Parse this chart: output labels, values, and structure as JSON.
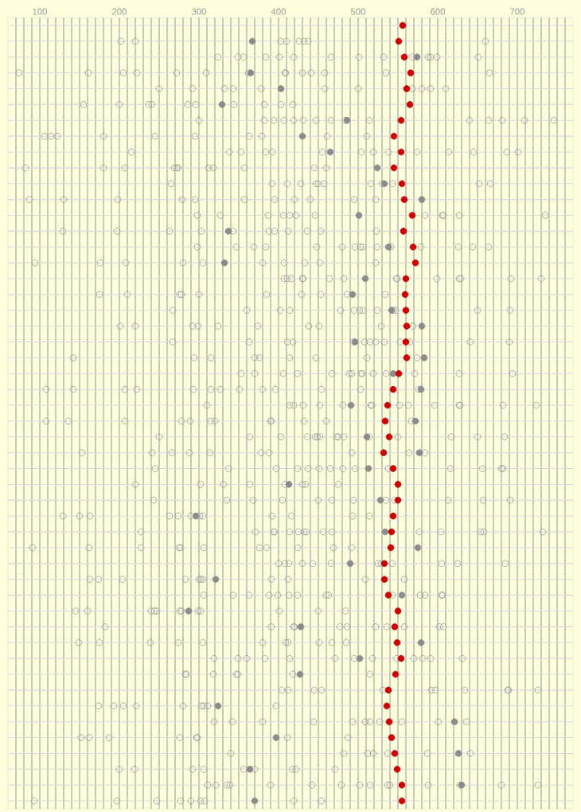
{
  "chart_data": {
    "type": "scatter",
    "orientation": "horizontal",
    "marker": "circle",
    "grid": true,
    "xlim": [
      60,
      770
    ],
    "xticks": [
      {
        "value": 70,
        "label": null
      },
      {
        "value": 80,
        "label": null
      },
      {
        "value": 90,
        "label": null
      },
      100,
      {
        "value": 110,
        "label": null
      },
      {
        "value": 120,
        "label": null
      },
      {
        "value": 130,
        "label": null
      },
      {
        "value": 140,
        "label": null
      },
      {
        "value": 150,
        "label": null
      },
      {
        "value": 160,
        "label": null
      },
      {
        "value": 170,
        "label": null
      },
      {
        "value": 180,
        "label": null
      },
      {
        "value": 190,
        "label": null
      },
      200,
      {
        "value": 210,
        "label": null
      },
      {
        "value": 220,
        "label": null
      },
      {
        "value": 230,
        "label": null
      },
      {
        "value": 240,
        "label": null
      },
      {
        "value": 250,
        "label": null
      },
      {
        "value": 260,
        "label": null
      },
      {
        "value": 270,
        "label": null
      },
      {
        "value": 280,
        "label": null
      },
      {
        "value": 290,
        "label": null
      },
      300,
      {
        "value": 310,
        "label": null
      },
      {
        "value": 320,
        "label": null
      },
      {
        "value": 330,
        "label": null
      },
      {
        "value": 340,
        "label": null
      },
      {
        "value": 350,
        "label": null
      },
      {
        "value": 360,
        "label": null
      },
      {
        "value": 370,
        "label": null
      },
      {
        "value": 380,
        "label": null
      },
      {
        "value": 390,
        "label": null
      },
      400,
      {
        "value": 410,
        "label": null
      },
      {
        "value": 420,
        "label": null
      },
      {
        "value": 430,
        "label": null
      },
      {
        "value": 440,
        "label": null
      },
      {
        "value": 450,
        "label": null
      },
      {
        "value": 460,
        "label": null
      },
      {
        "value": 470,
        "label": null
      },
      {
        "value": 480,
        "label": null
      },
      {
        "value": 490,
        "label": null
      },
      500,
      {
        "value": 510,
        "label": null
      },
      {
        "value": 520,
        "label": null
      },
      {
        "value": 530,
        "label": null
      },
      {
        "value": 540,
        "label": null
      },
      {
        "value": 550,
        "label": null
      },
      {
        "value": 560,
        "label": null
      },
      {
        "value": 570,
        "label": null
      },
      {
        "value": 580,
        "label": null
      },
      {
        "value": 590,
        "label": null
      },
      600,
      {
        "value": 610,
        "label": null
      },
      {
        "value": 620,
        "label": null
      },
      {
        "value": 630,
        "label": null
      },
      {
        "value": 640,
        "label": null
      },
      {
        "value": 650,
        "label": null
      },
      {
        "value": 660,
        "label": null
      },
      {
        "value": 670,
        "label": null
      },
      {
        "value": 680,
        "label": null
      },
      {
        "value": 690,
        "label": null
      },
      700,
      {
        "value": 710,
        "label": null
      },
      {
        "value": 720,
        "label": null
      },
      {
        "value": 730,
        "label": null
      },
      {
        "value": 740,
        "label": null
      },
      {
        "value": 750,
        "label": null
      },
      {
        "value": 760,
        "label": null
      }
    ],
    "categories": [
      null,
      null,
      null,
      null,
      null,
      null,
      null,
      null,
      null,
      null,
      null,
      null,
      null,
      null,
      null,
      null,
      null,
      null,
      null,
      null,
      null,
      null,
      null,
      null,
      null,
      null,
      null,
      null,
      null,
      null,
      null,
      null,
      null,
      null,
      null,
      null,
      null,
      null,
      null,
      null,
      null,
      null,
      null,
      null,
      null,
      null,
      null,
      null,
      null,
      null
    ],
    "series": [
      {
        "color": "#999999",
        "values": [
          null,
          202,
          324,
          74,
          250,
          155,
          300,
          106,
          215,
          82,
          265,
          87,
          298,
          129,
          298,
          94,
          407,
          175,
          267,
          201,
          267,
          142,
          353,
          108,
          310,
          108,
          250,
          153,
          245,
          220,
          243,
          129,
          227,
          91,
          400,
          163,
          306,
          145,
          182,
          149,
          319,
          283,
          404,
          174,
          319,
          152,
          340,
          200,
          311,
          93
        ]
      },
      {
        "color": "#999999",
        "values": [
          null,
          220,
          349,
          161,
          292,
          200,
          382,
          114,
          338,
          180,
          392,
          130,
          327,
          197,
          347,
          176,
          411,
          210,
          360,
          220,
          363,
          294,
          370,
          142,
          414,
          136,
          364,
          241,
          337,
          302,
          335,
          150,
          371,
          162,
          408,
          174,
          343,
          160,
          391,
          175,
          349,
          284,
          412,
          193,
          342,
          162,
          482,
          219,
          321,
          197
        ]
      },
      {
        "color": "#999999",
        "values": [
          null,
          403,
          356,
          205,
          332,
          237,
          394,
          122,
          353,
          207,
          411,
          198,
          387,
          263,
          369,
          208,
          416,
          276,
          402,
          292,
          411,
          315,
          406,
          207,
          419,
          207,
          403,
          266,
          397,
          331,
          368,
          163,
          394,
          227,
          413,
          204,
          363,
          240,
          419,
          239,
          360,
          318,
          445,
          205,
          380,
          187,
          512,
          292,
          335,
          247
        ]
      },
      {
        "color": "#999999",
        "values": [
          null,
          410,
          384,
          222,
          343,
          241,
          407,
          180,
          384,
          269,
          428,
          279,
          406,
          303,
          384,
          280,
          430,
          278,
          414,
          299,
          418,
          370,
          424,
          222,
          431,
          278,
          436,
          288,
          424,
          364,
          405,
          263,
          395,
          275,
          430,
          283,
          388,
          244,
          420,
          274,
          383,
          347,
          454,
          221,
          444,
          276,
          519,
          306,
          339,
          277
        ]
      },
      {
        "color": "#999999",
        "values": [
          null,
          426,
          401,
          272,
          378,
          286,
          419,
          245,
          392,
          272,
          447,
          295,
          414,
          343,
          448,
          305,
          431,
          300,
          478,
          324,
          494,
          376,
          467,
          293,
          452,
          289,
          446,
          314,
          437,
          408,
          450,
          274,
          414,
          277,
          443,
          300,
          399,
          247,
          477,
          305,
          414,
          349,
          531,
          280,
          493,
          297,
          537,
          356,
          390,
          290
        ]
      },
      {
        "color": "#999999",
        "values": [
          null,
          432,
          419,
          309,
          458,
          296,
          431,
          295,
          455,
          274,
          450,
          357,
          422,
          388,
          480,
          380,
          464,
          385,
          495,
          374,
          508,
          414,
          489,
          315,
          481,
          315,
          449,
          378,
          451,
          430,
          467,
          290,
          425,
          306,
          466,
          302,
          413,
          276,
          486,
          380,
          471,
          418,
          592,
          303,
          509,
          298,
          587,
          370,
          442,
          302
        ]
      },
      {
        "color": "#999999",
        "values": [
          null,
          437,
          466,
          362,
          500,
          344,
          447,
          363,
          504,
          312,
          457,
          395,
          446,
          395,
          496,
          407,
          482,
          429,
          502,
          438,
          515,
          447,
          492,
          327,
          516,
          320,
          452,
          388,
          465,
          434,
          494,
          301,
          432,
          376,
          525,
          305,
          424,
          278,
          522,
          409,
          495,
          515,
          597,
          306,
          515,
          411,
          641,
          417,
          479,
          307
        ]
      },
      {
        "color": "#999999",
        "values": [
          null,
          660,
          501,
          408,
          568,
          382,
          466,
          379,
          519,
          318,
          516,
          420,
          584,
          412,
          503,
          433,
          548,
          453,
          506,
          451,
          522,
          511,
          504,
          351,
          517,
          390,
          473,
          492,
          481,
          475,
          535,
          305,
          435,
          385,
          529,
          391,
          460,
          299,
          536,
          412,
          518,
          null,
          634,
          311,
          527,
          487,
          null,
          422,
          502,
          419
        ]
      },
      {
        "color": "#999999",
        "values": [
          null,
          null,
          532,
          409,
          580,
          403,
          484,
          461,
          538,
          357,
          530,
          440,
          606,
          436,
          506,
          452,
          549,
          486,
          524,
          529,
          533,
          574,
          505,
          380,
          552,
          391,
          475,
          564,
          496,
          null,
          546,
          392,
          456,
          424,
          543,
          412,
          463,
          302,
          558,
          451,
          548,
          null,
          688,
          397,
          555,
          null,
          null,
          471,
          515,
          454
        ]
      },
      {
        "color": "#999999",
        "values": [
          null,
          null,
          568,
          430,
          591,
          418,
          514,
          511,
          574,
          445,
          543,
          495,
          607,
          453,
          524,
          522,
          599,
          534,
          544,
          569,
          553,
          null,
          519,
          396,
          563,
          432,
          482,
          584,
          538,
          null,
          613,
          416,
          467,
          469,
          605,
          509,
          543,
          401,
          602,
          467,
          570,
          null,
          689,
          null,
          601,
          null,
          null,
          null,
          537,
          null
        ]
      },
      {
        "color": "#999999",
        "values": [
          null,
          null,
          588,
          441,
          610,
          null,
          640,
          null,
          614,
          460,
          652,
          522,
          627,
          523,
          541,
          null,
          627,
          null,
          547,
          null,
          565,
          null,
          535,
          454,
          596,
          460,
          514,
          null,
          616,
          null,
          657,
          493,
          577,
          492,
          625,
          558,
          578,
          450,
          607,
          485,
          581,
          null,
          726,
          null,
          636,
          null,
          null,
          null,
          540,
          null
        ]
      },
      {
        "color": "#999999",
        "values": [
          null,
          null,
          591,
          458,
          null,
          null,
          664,
          null,
          645,
          null,
          666,
          null,
          735,
          null,
          579,
          null,
          629,
          null,
          650,
          null,
          641,
          null,
          571,
          503,
          627,
          567,
          550,
          null,
          656,
          null,
          691,
          514,
          604,
          null,
          685,
          null,
          584,
          484,
          null,
          null,
          591,
          null,
          null,
          null,
          null,
          null,
          null,
          null,
          588,
          null
        ]
      },
      {
        "color": "#999999",
        "values": [
          null,
          null,
          599,
          535,
          null,
          null,
          681,
          null,
          687,
          null,
          null,
          null,
          null,
          null,
          626,
          null,
          692,
          null,
          691,
          null,
          690,
          null,
          627,
          576,
          628,
          null,
          617,
          null,
          680,
          null,
          null,
          null,
          654,
          null,
          null,
          null,
          605,
          null,
          null,
          null,
          631,
          null,
          null,
          null,
          null,
          null,
          null,
          null,
          628,
          null
        ]
      },
      {
        "color": "#999999",
        "values": [
          null,
          null,
          651,
          665,
          null,
          null,
          709,
          null,
          701,
          null,
          null,
          null,
          null,
          null,
          644,
          null,
          730,
          null,
          null,
          null,
          null,
          null,
          694,
          null,
          682,
          null,
          650,
          null,
          682,
          null,
          null,
          null,
          658,
          null,
          null,
          null,
          606,
          null,
          null,
          null,
          null,
          null,
          null,
          null,
          null,
          null,
          null,
          null,
          680,
          null
        ]
      },
      {
        "color": "#999999",
        "values": [
          null,
          null,
          null,
          null,
          null,
          null,
          746,
          null,
          null,
          null,
          null,
          null,
          null,
          null,
          664,
          null,
          null,
          null,
          null,
          null,
          null,
          null,
          null,
          null,
          724,
          null,
          684,
          null,
          null,
          null,
          null,
          null,
          732,
          null,
          null,
          null,
          null,
          null,
          null,
          null,
          null,
          null,
          null,
          null,
          null,
          null,
          null,
          null,
          726,
          null
        ]
      },
      {
        "color": "#8c8c8c",
        "values": [
          null,
          367,
          574,
          365,
          403,
          329,
          486,
          430,
          465,
          524,
          533,
          580,
          501,
          337,
          538,
          332,
          509,
          493,
          542,
          580,
          496,
          583,
          544,
          579,
          491,
          572,
          511,
          577,
          513,
          413,
          528,
          296,
          534,
          575,
          490,
          321,
          555,
          287,
          428,
          579,
          502,
          427,
          null,
          324,
          621,
          397,
          626,
          364,
          630,
          370
        ]
      },
      {
        "color": "#cc0000",
        "values": [
          556,
          551,
          558,
          566,
          561,
          565,
          554,
          545,
          554,
          545,
          555,
          558,
          568,
          557,
          569,
          572,
          560,
          559,
          560,
          561,
          560,
          561,
          551,
          544,
          537,
          534,
          539,
          532,
          544,
          550,
          550,
          544,
          542,
          541,
          533,
          533,
          538,
          550,
          546,
          549,
          554,
          547,
          538,
          536,
          539,
          542,
          546,
          549,
          555,
          555
        ]
      }
    ]
  }
}
